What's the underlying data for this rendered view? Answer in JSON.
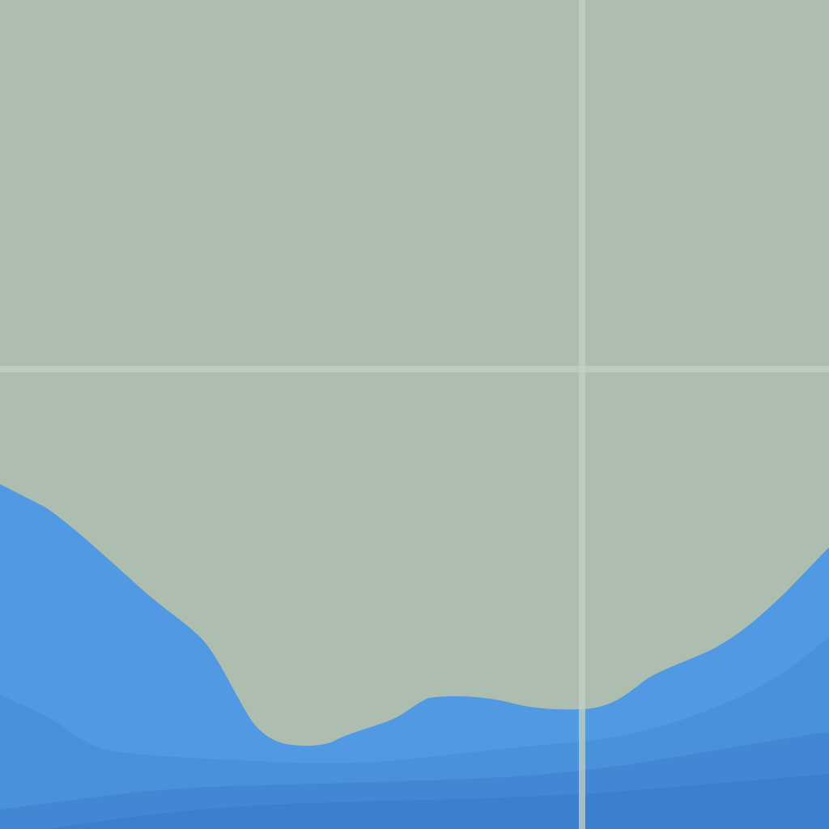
{
  "map": {
    "colors": {
      "land": "#adbdb0",
      "water_shallow": "#5299e3",
      "water_mid": "#4a91dc",
      "water_deep": "#4287d3",
      "water_deepest": "#3b80cd",
      "graticule": "#c3d1c5"
    },
    "layers": [
      "land",
      "water",
      "graticule"
    ]
  }
}
